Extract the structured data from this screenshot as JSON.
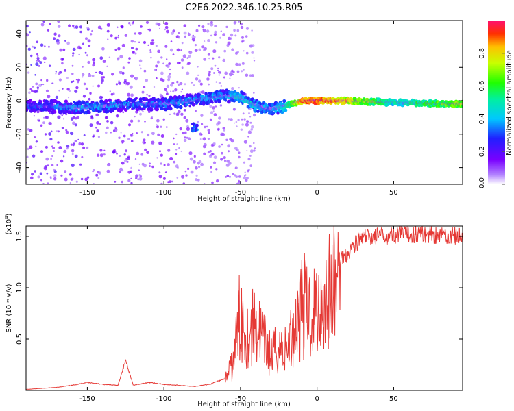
{
  "title": "C2E6.2022.346.10.25.R05",
  "colors": {
    "axis": "#000000",
    "snr_line": "#e53935",
    "colorbar": [
      "#7a00ff",
      "#2020ff",
      "#00d0ff",
      "#00ff40",
      "#c0ff00",
      "#ffd000",
      "#ff3000",
      "#ff1070"
    ]
  },
  "chart_data": [
    {
      "type": "heatmap",
      "title": "C2E6.2022.346.10.25.R05",
      "xlabel": "Height of straight line (km)",
      "ylabel": "Frequency (Hz)",
      "xlim": [
        -190,
        95
      ],
      "ylim": [
        -50,
        48
      ],
      "x_ticks": [
        -150,
        -100,
        -50,
        0,
        50
      ],
      "y_ticks": [
        -40,
        -20,
        0,
        20,
        40
      ],
      "colorbar": {
        "label": "Normalized spectral amplitude",
        "range": [
          0.0,
          1.0
        ],
        "ticks": [
          "0.0",
          "0.2",
          "0.4",
          "0.6",
          "0.8"
        ]
      },
      "ridge": {
        "description_points_x": [
          -185,
          -150,
          -120,
          -100,
          -75,
          -60,
          -50,
          -40,
          -30,
          -20,
          -10,
          0,
          20,
          50,
          90
        ],
        "frequency_hz": [
          -3,
          -4,
          -2,
          -2,
          1,
          3,
          2,
          -3,
          -5,
          -3,
          0,
          0,
          0,
          -1,
          -2
        ],
        "normalized_amplitude": [
          0.3,
          0.4,
          0.35,
          0.35,
          0.4,
          0.4,
          0.45,
          0.45,
          0.4,
          0.5,
          0.9,
          0.95,
          0.8,
          0.5,
          0.7
        ]
      },
      "secondary_feature": {
        "x": -80,
        "frequency_hz": -16,
        "normalized_amplitude": 0.35
      }
    },
    {
      "type": "line",
      "xlabel": "Height of straight line (km)",
      "ylabel": "SNR (10 * v/v)",
      "y_scale_label": "(x10^4)",
      "xlim": [
        -190,
        95
      ],
      "ylim": [
        0,
        1.6
      ],
      "x_ticks": [
        -150,
        -100,
        -50,
        0,
        50
      ],
      "y_ticks": [
        "0.5",
        "1.0",
        "1.5"
      ],
      "series": [
        {
          "x": [
            -190,
            -180,
            -170,
            -160,
            -150,
            -140,
            -130,
            -125,
            -120,
            -110,
            -100,
            -90,
            -80,
            -70,
            -60,
            -55,
            -50,
            -45,
            -40,
            -35,
            -30,
            -25,
            -20,
            -15,
            -10,
            -5,
            0,
            5,
            10,
            15,
            20,
            25,
            30,
            40,
            50,
            60,
            70,
            80,
            90,
            95
          ],
          "y": [
            0.01,
            0.02,
            0.03,
            0.05,
            0.08,
            0.06,
            0.05,
            0.3,
            0.05,
            0.08,
            0.06,
            0.05,
            0.04,
            0.06,
            0.12,
            0.3,
            0.9,
            0.6,
            0.8,
            0.55,
            0.4,
            0.5,
            0.45,
            0.7,
            1.0,
            0.9,
            0.95,
            1.05,
            1.15,
            1.3,
            1.35,
            1.45,
            1.5,
            1.52,
            1.53,
            1.54,
            1.54,
            1.53,
            1.52,
            1.5
          ]
        }
      ]
    }
  ],
  "texts": {
    "heat_xlabel": "Height of straight line (km)",
    "heat_ylabel": "Frequency (Hz)",
    "cbar_label": "Normalized spectral amplitude",
    "snr_xlabel": "Height of straight line (km)",
    "snr_ylabel": "SNR (10 * v/v)",
    "snr_scale_prefix": "(x10",
    "snr_scale_exp": "4",
    "snr_scale_suffix": ")"
  }
}
